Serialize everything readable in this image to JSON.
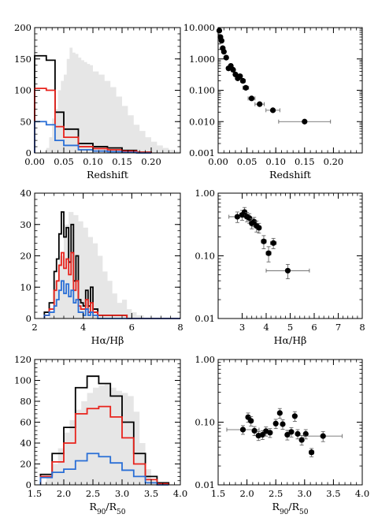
{
  "chart_data": [
    {
      "type": "histogram",
      "scale": "linear",
      "xlabel": "Redshift",
      "xlim": [
        0.0,
        0.25
      ],
      "ylim": [
        0,
        200
      ],
      "xticks": [
        0.0,
        0.05,
        0.1,
        0.15,
        0.2
      ],
      "xtick_labels": [
        "0.00",
        "0.05",
        "0.10",
        "0.15",
        "0.20"
      ],
      "yticks": [
        0,
        50,
        100,
        150,
        200
      ],
      "ytick_labels": [
        "0",
        "50",
        "100",
        "150",
        "200"
      ],
      "background_color": "#e6e6e6",
      "background": {
        "x": [
          0.0,
          0.01,
          0.02,
          0.025,
          0.03,
          0.035,
          0.04,
          0.045,
          0.05,
          0.055,
          0.06,
          0.065,
          0.07,
          0.075,
          0.08,
          0.085,
          0.09,
          0.095,
          0.1,
          0.11,
          0.12,
          0.13,
          0.14,
          0.15,
          0.16,
          0.17,
          0.18,
          0.19,
          0.2,
          0.21,
          0.22,
          0.23,
          0.24,
          0.25
        ],
        "y": [
          0,
          2,
          8,
          25,
          55,
          70,
          100,
          115,
          125,
          150,
          168,
          160,
          158,
          152,
          148,
          145,
          142,
          140,
          130,
          125,
          115,
          105,
          90,
          75,
          60,
          45,
          35,
          25,
          18,
          12,
          8,
          5,
          3,
          2
        ]
      },
      "series": [
        {
          "color": "#000000",
          "edges": [
            0.0,
            0.02,
            0.035,
            0.05,
            0.075,
            0.1,
            0.125,
            0.15,
            0.175,
            0.2
          ],
          "values": [
            155,
            148,
            65,
            38,
            15,
            10,
            8,
            4,
            1
          ]
        },
        {
          "color": "#e8231c",
          "edges": [
            0.0,
            0.02,
            0.035,
            0.05,
            0.075,
            0.1,
            0.125,
            0.15,
            0.175,
            0.2
          ],
          "values": [
            103,
            100,
            42,
            25,
            10,
            7,
            5,
            3,
            1
          ]
        },
        {
          "color": "#2a6fd6",
          "edges": [
            0.0,
            0.02,
            0.035,
            0.05,
            0.075,
            0.1,
            0.125,
            0.15,
            0.175,
            0.2
          ],
          "values": [
            50,
            45,
            20,
            12,
            5,
            3,
            2,
            1,
            0
          ]
        }
      ]
    },
    {
      "type": "scatter",
      "scale": "log",
      "xlabel": "Redshift",
      "xlim": [
        0.0,
        0.25
      ],
      "ylim": [
        0.001,
        10
      ],
      "xticks": [
        0.0,
        0.05,
        0.1,
        0.15,
        0.2
      ],
      "xtick_labels": [
        "0.00",
        "0.05",
        "0.10",
        "0.15",
        "0.20"
      ],
      "yticks": [
        0.001,
        0.01,
        0.1,
        1,
        10
      ],
      "ytick_labels": [
        "0.001",
        "0.010",
        "0.100",
        "1.000",
        "10.000"
      ],
      "points": [
        {
          "x": 0.002,
          "y": 8.0,
          "xerr": 0.002
        },
        {
          "x": 0.004,
          "y": 5.0,
          "xerr": 0.002
        },
        {
          "x": 0.006,
          "y": 3.8,
          "xerr": 0.002
        },
        {
          "x": 0.008,
          "y": 2.2,
          "xerr": 0.002
        },
        {
          "x": 0.01,
          "y": 1.7,
          "xerr": 0.002
        },
        {
          "x": 0.014,
          "y": 1.1,
          "xerr": 0.003
        },
        {
          "x": 0.018,
          "y": 0.5,
          "xerr": 0.003
        },
        {
          "x": 0.022,
          "y": 0.6,
          "xerr": 0.003
        },
        {
          "x": 0.026,
          "y": 0.45,
          "xerr": 0.003
        },
        {
          "x": 0.03,
          "y": 0.32,
          "xerr": 0.003
        },
        {
          "x": 0.034,
          "y": 0.24,
          "xerr": 0.003
        },
        {
          "x": 0.038,
          "y": 0.28,
          "xerr": 0.003
        },
        {
          "x": 0.043,
          "y": 0.2,
          "xerr": 0.004
        },
        {
          "x": 0.048,
          "y": 0.12,
          "xerr": 0.005
        },
        {
          "x": 0.058,
          "y": 0.055,
          "xerr": 0.006
        },
        {
          "x": 0.072,
          "y": 0.036,
          "xerr": 0.008
        },
        {
          "x": 0.095,
          "y": 0.023,
          "xerr": 0.012
        },
        {
          "x": 0.15,
          "y": 0.01,
          "xerr": 0.045
        }
      ]
    },
    {
      "type": "histogram",
      "scale": "linear",
      "xlabel": "Hα/Hβ",
      "xlim": [
        2,
        8
      ],
      "ylim": [
        0,
        40
      ],
      "xticks": [
        2,
        4,
        6,
        8
      ],
      "xtick_labels": [
        "2",
        "4",
        "6",
        "8"
      ],
      "yticks": [
        0,
        10,
        20,
        30,
        40
      ],
      "ytick_labels": [
        "0",
        "10",
        "20",
        "30",
        "40"
      ],
      "background_color": "#e6e6e6",
      "background": {
        "x": [
          2.0,
          2.6,
          2.8,
          3.0,
          3.2,
          3.4,
          3.6,
          3.8,
          4.0,
          4.2,
          4.4,
          4.6,
          4.8,
          5.0,
          5.2,
          5.4,
          5.6,
          5.8,
          6.0,
          6.2,
          6.5,
          8.0
        ],
        "y": [
          0,
          2,
          12,
          20,
          30,
          34,
          33,
          31,
          29,
          26,
          24,
          20,
          15,
          12,
          8,
          5,
          6,
          3,
          2,
          1,
          0,
          0
        ]
      },
      "series": [
        {
          "color": "#000000",
          "edges": [
            2.4,
            2.6,
            2.8,
            2.9,
            3.0,
            3.1,
            3.2,
            3.3,
            3.4,
            3.5,
            3.6,
            3.7,
            3.8,
            3.9,
            4.0,
            4.1,
            4.2,
            4.3,
            4.4,
            4.6,
            5.6,
            5.8,
            6.0,
            8.0
          ],
          "values": [
            2,
            5,
            15,
            19,
            27,
            34,
            26,
            29,
            18,
            30,
            12,
            20,
            6,
            5,
            4,
            9,
            4,
            10,
            3,
            1,
            1,
            0,
            0
          ]
        },
        {
          "color": "#e8231c",
          "edges": [
            2.4,
            2.6,
            2.8,
            2.9,
            3.0,
            3.1,
            3.2,
            3.3,
            3.4,
            3.5,
            3.6,
            3.7,
            3.8,
            3.9,
            4.0,
            4.1,
            4.2,
            4.3,
            4.4,
            4.6,
            5.6,
            5.8,
            6.0,
            8.0
          ],
          "values": [
            1,
            3,
            9,
            12,
            17,
            21,
            16,
            19,
            14,
            21,
            9,
            12,
            4,
            3,
            3,
            6,
            2,
            5,
            2,
            1,
            1,
            0,
            0
          ]
        },
        {
          "color": "#2a6fd6",
          "edges": [
            2.4,
            2.6,
            2.8,
            2.9,
            3.0,
            3.1,
            3.2,
            3.3,
            3.4,
            3.5,
            3.6,
            3.7,
            3.8,
            3.9,
            4.0,
            4.1,
            4.2,
            4.3,
            4.4,
            4.6,
            5.6,
            5.8,
            6.0,
            8.0
          ],
          "values": [
            1,
            2,
            4,
            6,
            9,
            12,
            8,
            11,
            7,
            9,
            5,
            6,
            2,
            2,
            1,
            3,
            1,
            2,
            1,
            0,
            0,
            0,
            0
          ]
        }
      ]
    },
    {
      "type": "scatter",
      "scale": "log",
      "xlabel": "Hα/Hβ",
      "xlim": [
        2,
        8
      ],
      "ylim": [
        0.01,
        1
      ],
      "xticks": [
        3,
        4,
        5,
        6,
        7,
        8
      ],
      "xtick_labels": [
        "3",
        "4",
        "5",
        "6",
        "7",
        "8"
      ],
      "yticks": [
        0.01,
        0.1,
        1
      ],
      "ytick_labels": [
        "0.01",
        "0.10",
        "1.00"
      ],
      "points": [
        {
          "x": 2.8,
          "y": 0.42,
          "xerr": 0.35,
          "yerr": 0.08
        },
        {
          "x": 3.0,
          "y": 0.45,
          "xerr": 0.1,
          "yerr": 0.08
        },
        {
          "x": 3.1,
          "y": 0.5,
          "xerr": 0.08,
          "yerr": 0.09
        },
        {
          "x": 3.2,
          "y": 0.42,
          "xerr": 0.08,
          "yerr": 0.07
        },
        {
          "x": 3.3,
          "y": 0.4,
          "xerr": 0.08,
          "yerr": 0.07
        },
        {
          "x": 3.4,
          "y": 0.33,
          "xerr": 0.08,
          "yerr": 0.06
        },
        {
          "x": 3.5,
          "y": 0.35,
          "xerr": 0.08,
          "yerr": 0.06
        },
        {
          "x": 3.6,
          "y": 0.3,
          "xerr": 0.08,
          "yerr": 0.06
        },
        {
          "x": 3.7,
          "y": 0.28,
          "xerr": 0.08,
          "yerr": 0.05
        },
        {
          "x": 3.9,
          "y": 0.17,
          "xerr": 0.1,
          "yerr": 0.04
        },
        {
          "x": 4.1,
          "y": 0.11,
          "xerr": 0.1,
          "yerr": 0.03
        },
        {
          "x": 4.3,
          "y": 0.16,
          "xerr": 0.12,
          "yerr": 0.03
        },
        {
          "x": 4.9,
          "y": 0.058,
          "xerr": 0.9,
          "yerr": 0.015
        }
      ]
    },
    {
      "type": "histogram",
      "scale": "linear",
      "xlabel": "R90/R50",
      "xlim": [
        1.5,
        4.0
      ],
      "ylim": [
        0,
        120
      ],
      "xticks": [
        1.5,
        2.0,
        2.5,
        3.0,
        3.5,
        4.0
      ],
      "xtick_labels": [
        "1.5",
        "2.0",
        "2.5",
        "3.0",
        "3.5",
        "4.0"
      ],
      "yticks": [
        0,
        20,
        40,
        60,
        80,
        100,
        120
      ],
      "ytick_labels": [
        "0",
        "20",
        "40",
        "60",
        "80",
        "100",
        "120"
      ],
      "background_color": "#e6e6e6",
      "background": {
        "x": [
          1.5,
          1.7,
          1.8,
          1.9,
          2.0,
          2.1,
          2.2,
          2.3,
          2.4,
          2.5,
          2.6,
          2.7,
          2.8,
          2.9,
          3.0,
          3.1,
          3.2,
          3.3,
          3.4,
          3.5,
          3.6,
          4.0
        ],
        "y": [
          0,
          8,
          20,
          35,
          50,
          62,
          72,
          80,
          88,
          93,
          95,
          96,
          93,
          90,
          88,
          85,
          70,
          40,
          15,
          4,
          0,
          0
        ]
      },
      "series": [
        {
          "color": "#000000",
          "edges": [
            1.6,
            1.8,
            2.0,
            2.2,
            2.4,
            2.6,
            2.8,
            3.0,
            3.2,
            3.4,
            3.6,
            3.8
          ],
          "values": [
            10,
            30,
            55,
            93,
            104,
            97,
            85,
            60,
            30,
            8,
            2
          ]
        },
        {
          "color": "#e8231c",
          "edges": [
            1.6,
            1.8,
            2.0,
            2.2,
            2.4,
            2.6,
            2.8,
            3.0,
            3.2,
            3.4,
            3.6,
            3.8
          ],
          "values": [
            8,
            22,
            40,
            68,
            73,
            75,
            65,
            45,
            20,
            5,
            1
          ]
        },
        {
          "color": "#2a6fd6",
          "edges": [
            1.6,
            1.8,
            2.0,
            2.2,
            2.4,
            2.6,
            2.8,
            3.0,
            3.2,
            3.4,
            3.6,
            3.8
          ],
          "values": [
            7,
            12,
            15,
            23,
            30,
            27,
            21,
            14,
            8,
            2,
            0
          ]
        }
      ]
    },
    {
      "type": "scatter",
      "scale": "log",
      "xlabel": "R90/R50",
      "xlim": [
        1.5,
        4.0
      ],
      "ylim": [
        0.01,
        1
      ],
      "xticks": [
        1.5,
        2.0,
        2.5,
        3.0,
        3.5,
        4.0
      ],
      "xtick_labels": [
        "1.5",
        "2.0",
        "2.5",
        "3.0",
        "3.5",
        "4.0"
      ],
      "yticks": [
        0.01,
        0.1,
        1
      ],
      "ytick_labels": [
        "0.01",
        "0.10",
        "1.00"
      ],
      "points": [
        {
          "x": 1.93,
          "y": 0.076,
          "xerr": 0.28,
          "yerr": 0.012
        },
        {
          "x": 2.02,
          "y": 0.12,
          "xerr": 0.03,
          "yerr": 0.02
        },
        {
          "x": 2.07,
          "y": 0.105,
          "xerr": 0.03,
          "yerr": 0.018
        },
        {
          "x": 2.13,
          "y": 0.073,
          "xerr": 0.03,
          "yerr": 0.012
        },
        {
          "x": 2.2,
          "y": 0.061,
          "xerr": 0.03,
          "yerr": 0.01
        },
        {
          "x": 2.27,
          "y": 0.063,
          "xerr": 0.03,
          "yerr": 0.01
        },
        {
          "x": 2.33,
          "y": 0.072,
          "xerr": 0.03,
          "yerr": 0.012
        },
        {
          "x": 2.4,
          "y": 0.068,
          "xerr": 0.03,
          "yerr": 0.011
        },
        {
          "x": 2.5,
          "y": 0.095,
          "xerr": 0.03,
          "yerr": 0.016
        },
        {
          "x": 2.57,
          "y": 0.14,
          "xerr": 0.03,
          "yerr": 0.025
        },
        {
          "x": 2.62,
          "y": 0.093,
          "xerr": 0.03,
          "yerr": 0.016
        },
        {
          "x": 2.7,
          "y": 0.063,
          "xerr": 0.03,
          "yerr": 0.011
        },
        {
          "x": 2.77,
          "y": 0.07,
          "xerr": 0.03,
          "yerr": 0.012
        },
        {
          "x": 2.83,
          "y": 0.125,
          "xerr": 0.03,
          "yerr": 0.022
        },
        {
          "x": 2.88,
          "y": 0.065,
          "xerr": 0.03,
          "yerr": 0.011
        },
        {
          "x": 2.95,
          "y": 0.052,
          "xerr": 0.03,
          "yerr": 0.009
        },
        {
          "x": 3.02,
          "y": 0.065,
          "xerr": 0.03,
          "yerr": 0.011
        },
        {
          "x": 3.12,
          "y": 0.033,
          "xerr": 0.04,
          "yerr": 0.005
        },
        {
          "x": 3.32,
          "y": 0.06,
          "xerr": 0.33,
          "yerr": 0.011
        }
      ]
    }
  ]
}
